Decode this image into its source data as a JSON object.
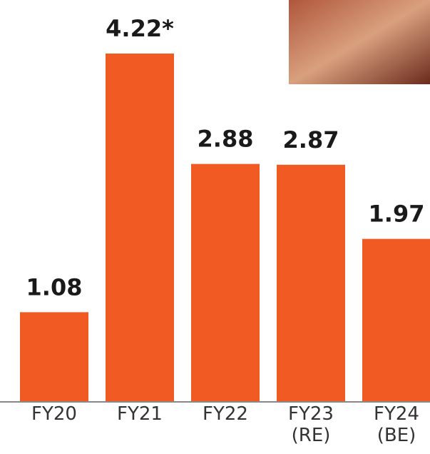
{
  "chart_data": {
    "type": "bar",
    "categories": [
      "FY20",
      "FY21",
      "FY22",
      "FY23\n(RE)",
      "FY24\n(BE)"
    ],
    "values": [
      1.08,
      4.22,
      2.88,
      2.87,
      1.97
    ],
    "value_labels": [
      "1.08",
      "4.22*",
      "2.88",
      "2.87",
      "1.97"
    ],
    "color": "#f15a22"
  }
}
